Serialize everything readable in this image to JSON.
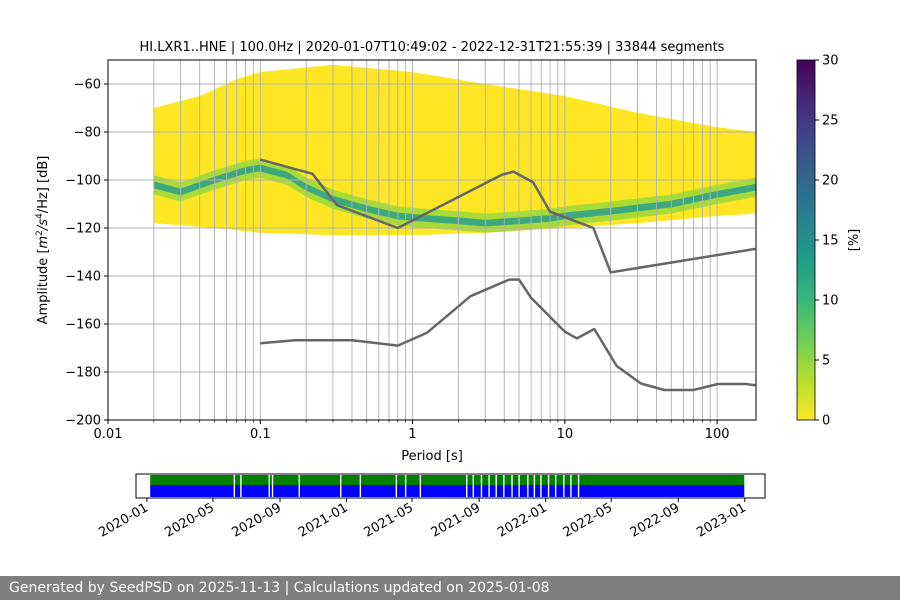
{
  "chart_data": {
    "type": "heatmap",
    "title": "HI.LXR1..HNE | 100.0Hz | 2020-01-07T10:49:02 - 2022-12-31T21:55:39 | 33844 segments",
    "xlabel": "Period [s]",
    "ylabel": "Amplitude [m²/s⁴/Hz] [dB]",
    "ylabel_parts": {
      "pre": "Amplitude [",
      "m": "m",
      "m_sup": "2",
      "slash": "/s",
      "s_sup": "4",
      "post": "/Hz] [dB]"
    },
    "x_scale": "log",
    "xlim": [
      0.01,
      180
    ],
    "ylim": [
      -200,
      -50
    ],
    "x_ticks": [
      0.01,
      0.1,
      1,
      10,
      100
    ],
    "x_tick_labels": [
      "0.01",
      "0.1",
      "1",
      "10",
      "100"
    ],
    "y_ticks": [
      -200,
      -180,
      -160,
      -140,
      -120,
      -100,
      -80,
      -60
    ],
    "y_tick_labels": [
      "−200",
      "−180",
      "−160",
      "−140",
      "−120",
      "−100",
      "−80",
      "−60"
    ],
    "grid": true,
    "period_grid": [
      0.02,
      0.03,
      0.04,
      0.05,
      0.06,
      0.07,
      0.08,
      0.09,
      0.1,
      0.2,
      0.3,
      0.4,
      0.5,
      0.6,
      0.7,
      0.8,
      0.9,
      1,
      2,
      3,
      4,
      5,
      6,
      7,
      8,
      9,
      10,
      20,
      30,
      40,
      50,
      60,
      70,
      80,
      90,
      100
    ],
    "colorbar": {
      "label": "[%]",
      "range": [
        0,
        30
      ],
      "ticks": [
        0,
        5,
        10,
        15,
        20,
        25,
        30
      ],
      "colormap": [
        "#fde725",
        "#b5de2b",
        "#6ece58",
        "#35b779",
        "#1f9e89",
        "#26828e",
        "#31688e",
        "#3e4989",
        "#482878",
        "#440154"
      ]
    },
    "psd_mode": [
      [
        0.02,
        -102
      ],
      [
        0.03,
        -105
      ],
      [
        0.05,
        -100
      ],
      [
        0.08,
        -96
      ],
      [
        0.1,
        -95
      ],
      [
        0.15,
        -98
      ],
      [
        0.2,
        -103
      ],
      [
        0.3,
        -108
      ],
      [
        0.5,
        -112
      ],
      [
        0.8,
        -115
      ],
      [
        1.2,
        -116
      ],
      [
        2,
        -117
      ],
      [
        3,
        -118
      ],
      [
        5,
        -117
      ],
      [
        8,
        -116
      ],
      [
        10,
        -115
      ],
      [
        20,
        -113
      ],
      [
        50,
        -110
      ],
      [
        100,
        -106
      ],
      [
        180,
        -103
      ]
    ],
    "coverage_upper": [
      [
        0.02,
        -70
      ],
      [
        0.04,
        -65
      ],
      [
        0.07,
        -58
      ],
      [
        0.1,
        -55
      ],
      [
        0.3,
        -52
      ],
      [
        1,
        -55
      ],
      [
        3,
        -60
      ],
      [
        10,
        -65
      ],
      [
        30,
        -72
      ],
      [
        100,
        -78
      ],
      [
        180,
        -80
      ]
    ],
    "coverage_lower": [
      [
        0.02,
        -118
      ],
      [
        0.05,
        -120
      ],
      [
        0.1,
        -122
      ],
      [
        0.3,
        -123
      ],
      [
        1,
        -123
      ],
      [
        3,
        -122
      ],
      [
        10,
        -120
      ],
      [
        30,
        -118
      ],
      [
        100,
        -115
      ],
      [
        180,
        -114
      ]
    ],
    "series": [
      {
        "x": [
          0.1,
          0.22,
          0.32,
          0.8,
          3.8,
          4.6,
          6.2,
          8,
          15.4,
          20,
          178
        ],
        "y": [
          -91.5,
          -97.4,
          -110.5,
          -120,
          -98,
          -96.5,
          -101,
          -113.2,
          -120,
          -138.5,
          -128.7
        ]
      },
      {
        "x": [
          0.1,
          0.17,
          0.4,
          0.8,
          1.24,
          2.4,
          4.3,
          5,
          6,
          10,
          12,
          15.6,
          21.9,
          31.6,
          45,
          70,
          101,
          154,
          178
        ],
        "y": [
          -168,
          -166.8,
          -166.8,
          -169,
          -163.7,
          -148.4,
          -141.5,
          -141.5,
          -149.1,
          -163.2,
          -166,
          -162.1,
          -177.5,
          -184.8,
          -187.5,
          -187.5,
          -185,
          -185,
          -185.5
        ]
      }
    ],
    "timeline": {
      "x_tick_labels": [
        "2020-01",
        "2020-05",
        "2020-09",
        "2021-01",
        "2021-05",
        "2021-09",
        "2022-01",
        "2022-05",
        "2022-09",
        "2023-01"
      ],
      "x_ticks": [
        "2020-01-01",
        "2020-05-01",
        "2020-09-01",
        "2021-01-01",
        "2021-05-01",
        "2021-09-01",
        "2022-01-01",
        "2022-05-01",
        "2022-09-01",
        "2023-01-01"
      ],
      "range": [
        "2019-12-12",
        "2023-02-07"
      ],
      "data_start": "2020-01-07",
      "data_end": "2022-12-31",
      "colors": {
        "coverage": "#008000",
        "processed": "#0000ff"
      },
      "gaps": [
        "2020-06-08",
        "2020-06-20",
        "2020-08-11",
        "2020-08-17",
        "2020-10-05",
        "2020-12-20",
        "2021-01-25",
        "2021-04-01",
        "2021-04-18",
        "2021-05-15",
        "2021-08-08",
        "2021-08-20",
        "2021-09-04",
        "2021-09-18",
        "2021-10-01",
        "2021-10-15",
        "2021-10-30",
        "2021-11-12",
        "2021-11-28",
        "2021-12-10",
        "2021-12-22",
        "2022-01-05",
        "2022-01-18",
        "2022-02-02",
        "2022-02-15",
        "2022-03-01"
      ]
    }
  },
  "footer": {
    "text": "Generated by SeedPSD on 2025-11-13 | Calculations updated on 2025-01-08"
  }
}
